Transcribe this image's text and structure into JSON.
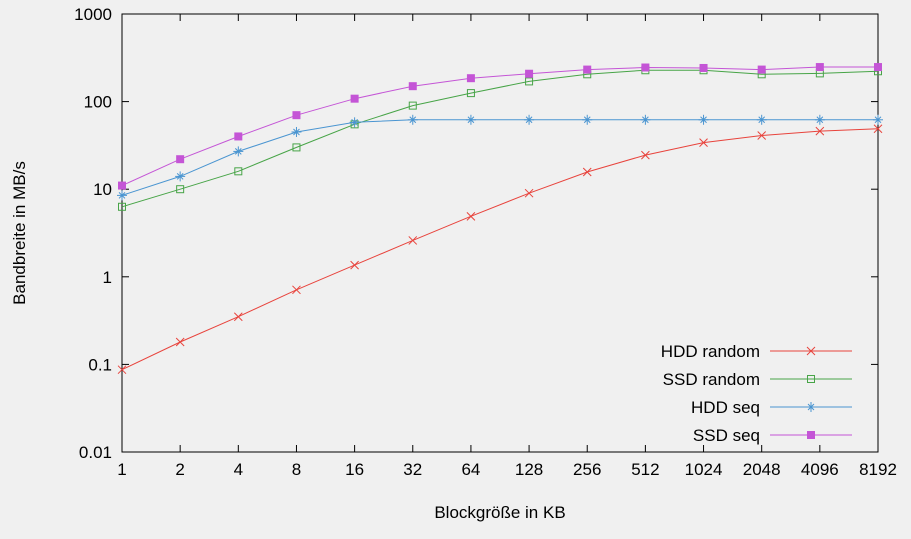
{
  "chart_data": {
    "type": "line",
    "title": "",
    "xlabel": "Blockgröße in KB",
    "ylabel": "Bandbreite in MB/s",
    "x_scale": "log2",
    "y_scale": "log10",
    "xlim": [
      1,
      8192
    ],
    "ylim": [
      0.01,
      1000
    ],
    "grid": false,
    "legend_position": "bottom-right-inside",
    "background": "#f0f0f0",
    "text_color": "#000000",
    "x": [
      1,
      2,
      4,
      8,
      16,
      32,
      64,
      128,
      256,
      512,
      1024,
      2048,
      4096,
      8192
    ],
    "x_tick_labels": [
      "1",
      "2",
      "4",
      "8",
      "16",
      "32",
      "64",
      "128",
      "256",
      "512",
      "1024",
      "2048",
      "4096",
      "8192"
    ],
    "y_ticks": [
      0.01,
      0.1,
      1,
      10,
      100,
      1000
    ],
    "y_tick_labels": [
      "0.01",
      "0.1",
      "1",
      "10",
      "100",
      "1000"
    ],
    "series": [
      {
        "name": "HDD random",
        "color": "#e8433c",
        "marker": "cross",
        "values": [
          0.087,
          0.18,
          0.35,
          0.71,
          1.36,
          2.6,
          4.9,
          9,
          15.7,
          24.5,
          34,
          41,
          46,
          49
        ]
      },
      {
        "name": "SSD random",
        "color": "#47a447",
        "marker": "open-square",
        "values": [
          6.3,
          10,
          16,
          30,
          55,
          90,
          125,
          170,
          205,
          228,
          228,
          205,
          210,
          222
        ]
      },
      {
        "name": "HDD seq",
        "color": "#4a95d1",
        "marker": "asterisk",
        "values": [
          8.5,
          14,
          27,
          45,
          58,
          62,
          62,
          62,
          62,
          62,
          62,
          62,
          62,
          62
        ]
      },
      {
        "name": "SSD seq",
        "color": "#c455d6",
        "marker": "filled-square",
        "values": [
          11,
          22,
          40,
          70,
          108,
          150,
          185,
          208,
          232,
          245,
          242,
          232,
          248,
          248
        ]
      }
    ]
  }
}
